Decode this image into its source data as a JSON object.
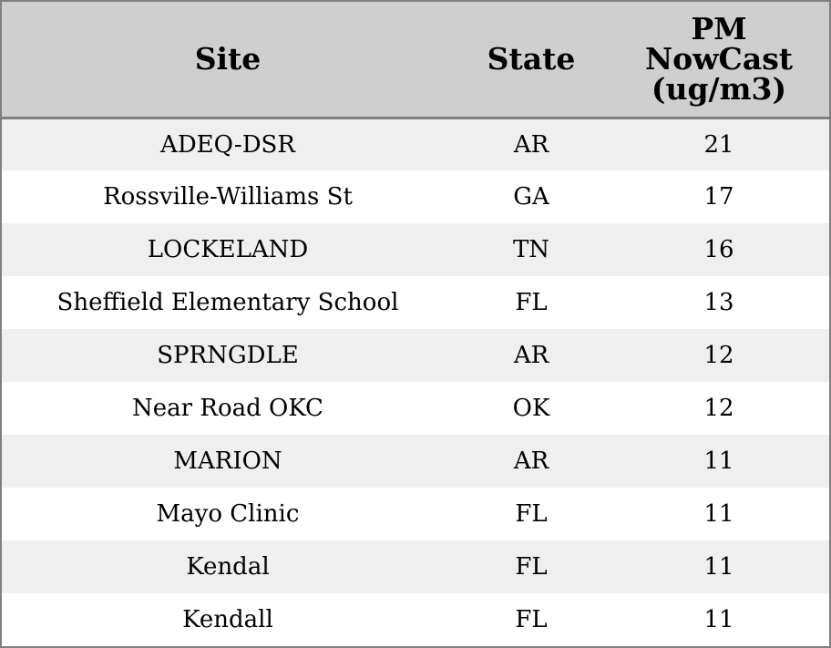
{
  "table": {
    "headers": {
      "site": "Site",
      "state": "State",
      "pm_line1": "PM",
      "pm_line2": "NowCast",
      "pm_line3": "(ug/m3)"
    },
    "rows": [
      {
        "site": "ADEQ-DSR",
        "state": "AR",
        "pm": "21"
      },
      {
        "site": "Rossville-Williams St",
        "state": "GA",
        "pm": "17"
      },
      {
        "site": "LOCKELAND",
        "state": "TN",
        "pm": "16"
      },
      {
        "site": "Sheffield Elementary School",
        "state": "FL",
        "pm": "13"
      },
      {
        "site": "SPRNGDLE",
        "state": "AR",
        "pm": "12"
      },
      {
        "site": "Near Road OKC",
        "state": "OK",
        "pm": "12"
      },
      {
        "site": "MARION",
        "state": "AR",
        "pm": "11"
      },
      {
        "site": "Mayo Clinic",
        "state": "FL",
        "pm": "11"
      },
      {
        "site": "Kendal",
        "state": "FL",
        "pm": "11"
      },
      {
        "site": "Kendall",
        "state": "FL",
        "pm": "11"
      }
    ]
  },
  "colors": {
    "header_bg": "#cfcfcf",
    "row_alt_bg": "#efefef",
    "row_bg": "#ffffff",
    "border": "#808080"
  }
}
